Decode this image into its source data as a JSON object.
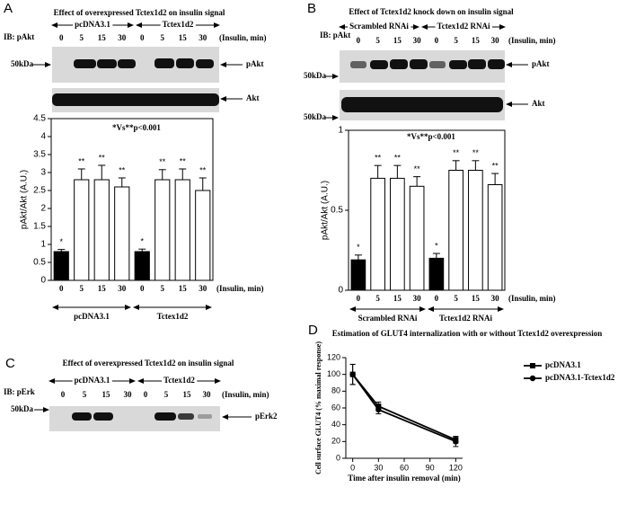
{
  "panels": {
    "a": {
      "letter": "A",
      "title": "Effect of overexpressed Tctex1d2 on insulin signal",
      "ib": "IB: pAkt",
      "groups": [
        "pcDNA3.1",
        "Tctex1d2"
      ],
      "lanes": [
        "0",
        "5",
        "15",
        "30",
        "0",
        "5",
        "15",
        "30"
      ],
      "lane_unit": "(Insulin, min)",
      "marker": "50kDa",
      "bands": [
        "pAkt",
        "Akt"
      ]
    },
    "b": {
      "letter": "B",
      "title": "Effect of Tctex1d2 knock down on insulin signal",
      "ib": "IB: pAkt",
      "groups": [
        "Scrambled RNAi",
        "Tctex1d2 RNAi"
      ],
      "lanes": [
        "0",
        "5",
        "15",
        "30",
        "0",
        "5",
        "15",
        "30"
      ],
      "lane_unit": "(Insulin, min)",
      "markers": [
        "50kDa",
        "50kDa"
      ],
      "bands": [
        "pAkt",
        "Akt"
      ]
    },
    "c": {
      "letter": "C",
      "title": "Effect of overexpressed Tctex1d2 on insulin signal",
      "ib": "IB: pErk",
      "groups": [
        "pcDNA3.1",
        "Tctex1d2"
      ],
      "lanes": [
        "0",
        "5",
        "15",
        "30",
        "0",
        "5",
        "15",
        "30"
      ],
      "lane_unit": "(Insulin, min)",
      "marker": "50kDa",
      "band": "pErk2"
    },
    "d": {
      "letter": "D",
      "title": "Estimation of GLUT4 internalization with or without Tctex1d2 overexpression"
    }
  },
  "chart_data": [
    {
      "type": "bar",
      "y_label": "pAkt/Akt (A.U.)",
      "annotation": "*Vs**p<0.001",
      "categories": [
        "0",
        "5",
        "15",
        "30",
        "0",
        "5",
        "15",
        "30"
      ],
      "x_unit": "(Insulin, min)",
      "groups": [
        "pcDNA3.1",
        "Tctex1d2"
      ],
      "values": [
        0.8,
        2.8,
        2.8,
        2.6,
        0.8,
        2.8,
        2.8,
        2.5
      ],
      "errors": [
        0.06,
        0.3,
        0.4,
        0.25,
        0.07,
        0.28,
        0.3,
        0.35
      ],
      "significance": [
        "*",
        "**",
        "**",
        "**",
        "*",
        "**",
        "**",
        "**"
      ],
      "colors": [
        "#000000",
        "#ffffff",
        "#ffffff",
        "#ffffff",
        "#000000",
        "#ffffff",
        "#ffffff",
        "#ffffff"
      ],
      "ylim": [
        0,
        4.5
      ],
      "yticks": [
        0,
        0.5,
        1,
        1.5,
        2,
        2.5,
        3,
        3.5,
        4,
        4.5
      ]
    },
    {
      "type": "bar",
      "y_label": "pAkt/Akt (A.U.)",
      "annotation": "*Vs**p<0.001",
      "categories": [
        "0",
        "5",
        "15",
        "30",
        "0",
        "5",
        "15",
        "30"
      ],
      "x_unit": "(Insulin, min)",
      "groups": [
        "Scrambled RNAi",
        "Tctex1d2 RNAi"
      ],
      "values": [
        0.19,
        0.7,
        0.7,
        0.65,
        0.2,
        0.75,
        0.75,
        0.66
      ],
      "errors": [
        0.03,
        0.08,
        0.08,
        0.06,
        0.03,
        0.06,
        0.06,
        0.07
      ],
      "significance": [
        "*",
        "**",
        "**",
        "**",
        "*",
        "**",
        "**",
        "**"
      ],
      "colors": [
        "#000000",
        "#ffffff",
        "#ffffff",
        "#ffffff",
        "#000000",
        "#ffffff",
        "#ffffff",
        "#ffffff"
      ],
      "ylim": [
        0,
        1
      ],
      "yticks": [
        0,
        0.5,
        1
      ]
    },
    {
      "type": "line",
      "y_label": "Cell surface GLUT4 (% maximal response)",
      "x_label": "Time after insulin removal (min)",
      "x": [
        0,
        30,
        120
      ],
      "series": [
        {
          "name": "pcDNA3.1",
          "color": "#000000",
          "marker": "square",
          "values": [
            100,
            62,
            22
          ],
          "errors": [
            12,
            5,
            4
          ]
        },
        {
          "name": "pcDNA3.1-Tctex1d2",
          "color": "#000000",
          "marker": "circle",
          "values": [
            100,
            58,
            20
          ],
          "errors": [
            12,
            5,
            6
          ]
        }
      ],
      "xlim": [
        -8,
        128
      ],
      "xticks": [
        0,
        30,
        60,
        90,
        120
      ],
      "ylim": [
        0,
        120
      ],
      "yticks": [
        0,
        20,
        40,
        60,
        80,
        100,
        120
      ]
    }
  ]
}
